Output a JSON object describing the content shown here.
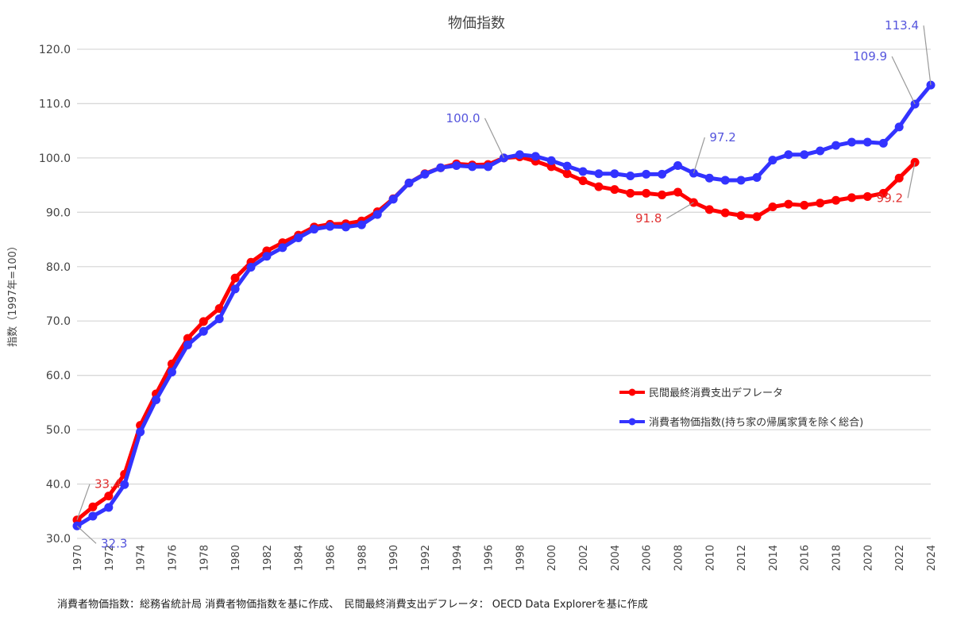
{
  "chart_data": {
    "type": "line",
    "title": "物価指数",
    "ylabel": "指数（1997年=100）",
    "xlabel": "",
    "ylim": [
      30,
      120
    ],
    "yticks": [
      "30.0",
      "40.0",
      "50.0",
      "60.0",
      "70.0",
      "80.0",
      "90.0",
      "100.0",
      "110.0",
      "120.0"
    ],
    "xlim": [
      1970,
      2024
    ],
    "xticks": [
      "1970",
      "1972",
      "1974",
      "1976",
      "1978",
      "1980",
      "1982",
      "1984",
      "1986",
      "1988",
      "1990",
      "1992",
      "1994",
      "1996",
      "1998",
      "2000",
      "2002",
      "2004",
      "2006",
      "2008",
      "2010",
      "2012",
      "2014",
      "2016",
      "2018",
      "2020",
      "2022",
      "2024"
    ],
    "grid": true,
    "legend_placement": "center-right",
    "series": [
      {
        "name": "民間最終消費支出デフレータ",
        "color": "#ff0000",
        "x_start": 1970,
        "values": [
          33.4,
          35.8,
          37.8,
          41.8,
          50.8,
          56.6,
          62.1,
          66.8,
          69.9,
          72.3,
          77.9,
          80.8,
          82.9,
          84.4,
          85.8,
          87.3,
          87.8,
          87.9,
          88.4,
          90.1,
          92.5,
          95.4,
          97.1,
          98.2,
          98.9,
          98.7,
          98.8,
          100.0,
          100.2,
          99.4,
          98.4,
          97.1,
          95.8,
          94.7,
          94.2,
          93.5,
          93.5,
          93.2,
          93.7,
          91.8,
          90.5,
          89.9,
          89.4,
          89.2,
          91.0,
          91.5,
          91.3,
          91.7,
          92.2,
          92.7,
          92.9,
          93.5,
          96.3,
          99.2
        ]
      },
      {
        "name": "消費者物価指数(持ち家の帰属家賃を除く総合)",
        "color": "#3333ff",
        "x_start": 1970,
        "values": [
          32.3,
          34.1,
          35.7,
          39.9,
          49.6,
          55.5,
          60.6,
          65.6,
          68.1,
          70.4,
          75.9,
          79.9,
          81.9,
          83.5,
          85.3,
          86.9,
          87.4,
          87.3,
          87.7,
          89.6,
          92.4,
          95.4,
          97.0,
          98.2,
          98.6,
          98.4,
          98.4,
          100.0,
          100.6,
          100.3,
          99.5,
          98.5,
          97.5,
          97.1,
          97.1,
          96.7,
          97.0,
          97.0,
          98.6,
          97.2,
          96.3,
          95.9,
          95.9,
          96.4,
          99.6,
          100.6,
          100.6,
          101.3,
          102.3,
          102.9,
          102.9,
          102.7,
          105.7,
          109.9,
          113.4
        ]
      }
    ],
    "annotations": [
      {
        "text": "33.4",
        "series": 0,
        "year": 1970,
        "color": "#e03030"
      },
      {
        "text": "32.3",
        "series": 1,
        "year": 1970,
        "color": "#5555dd"
      },
      {
        "text": "100.0",
        "series": 1,
        "year": 1997,
        "color": "#5555dd"
      },
      {
        "text": "91.8",
        "series": 0,
        "year": 2009,
        "color": "#e03030"
      },
      {
        "text": "97.2",
        "series": 1,
        "year": 2009,
        "color": "#5555dd"
      },
      {
        "text": "99.2",
        "series": 0,
        "year": 2023,
        "color": "#e03030"
      },
      {
        "text": "109.9",
        "series": 1,
        "year": 2023,
        "color": "#5555dd"
      },
      {
        "text": "113.4",
        "series": 1,
        "year": 2024,
        "color": "#5555dd"
      }
    ]
  },
  "footer": "消費者物価指数：総務省統計局 消費者物価指数を基に作成、　民間最終消費支出デフレータ： OECD Data Explorerを基に作成"
}
